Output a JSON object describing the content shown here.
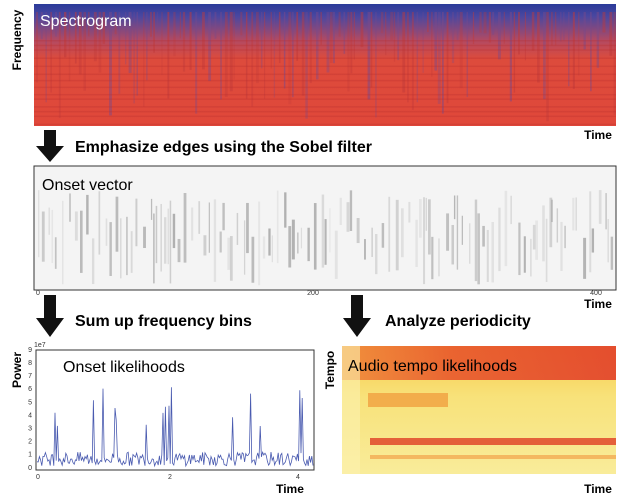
{
  "spectrogram": {
    "title": "Spectrogram",
    "y_label": "Frequency",
    "x_label": "Time"
  },
  "step1": {
    "label": "Emphasize edges using the Sobel filter"
  },
  "onset_vector": {
    "title": "Onset vector",
    "x_label": "Time",
    "x_ticks": [
      "0",
      "200",
      "400"
    ]
  },
  "step2": {
    "label": "Sum up frequency bins"
  },
  "step3": {
    "label": "Analyze periodicity"
  },
  "onset_likelihoods": {
    "title": "Onset likelihoods",
    "y_label": "Power",
    "x_label": "Time",
    "scale": "1e7",
    "y_ticks": [
      "0",
      "1",
      "2",
      "3",
      "4",
      "5",
      "6",
      "7",
      "8",
      "9"
    ],
    "x_ticks": [
      "0",
      "2",
      "4"
    ]
  },
  "tempo": {
    "title": "Audio tempo likelihoods",
    "y_label": "Tempo",
    "x_label": "Time"
  }
}
